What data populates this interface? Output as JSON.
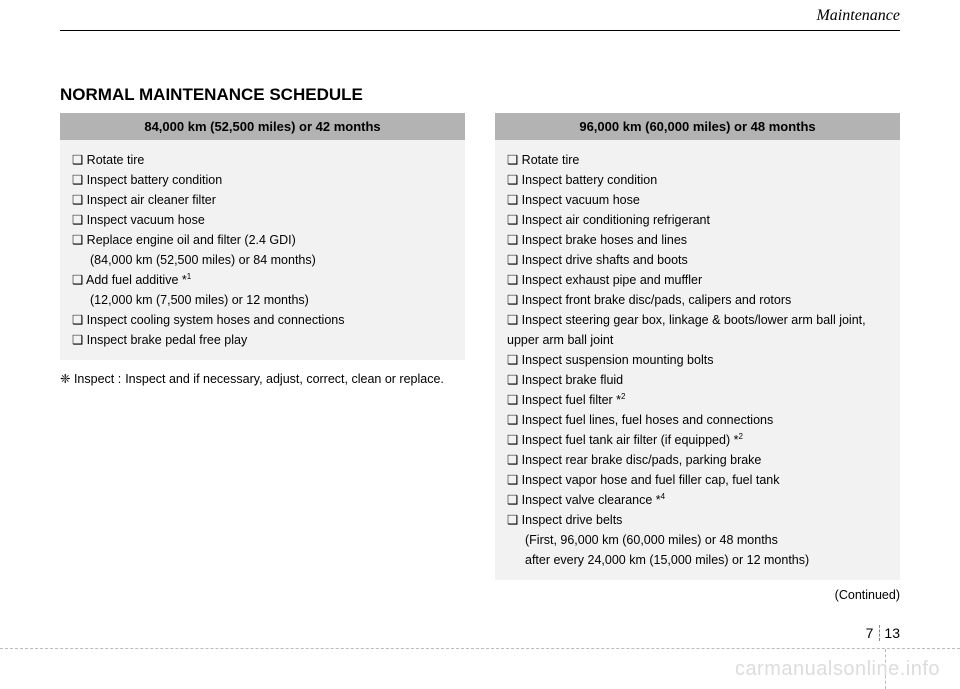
{
  "header": {
    "section": "Maintenance"
  },
  "title": "NORMAL MAINTENANCE SCHEDULE",
  "left": {
    "interval": "84,000 km (52,500 miles) or 42 months",
    "items": [
      {
        "text": "❑ Rotate tire"
      },
      {
        "text": "❑ Inspect battery condition"
      },
      {
        "text": "❑ Inspect air cleaner filter"
      },
      {
        "text": "❑ Inspect vacuum hose"
      },
      {
        "text": "❑ Replace engine oil and filter (2.4 GDI)"
      },
      {
        "text": "(84,000 km (52,500 miles) or 84 months)",
        "sub": true
      },
      {
        "text": "❑ Add fuel additive *",
        "sup": "1"
      },
      {
        "text": "(12,000 km (7,500 miles) or 12 months)",
        "sub": true
      },
      {
        "text": "❑ Inspect cooling system hoses and connections"
      },
      {
        "text": "❑ Inspect brake pedal free play"
      }
    ],
    "note_label": "❈ Inspect :",
    "note_text": "Inspect and if necessary, adjust, correct, clean or replace."
  },
  "right": {
    "interval": "96,000 km (60,000 miles) or 48 months",
    "items": [
      {
        "text": "❑ Rotate tire"
      },
      {
        "text": "❑ Inspect battery condition"
      },
      {
        "text": "❑ Inspect vacuum hose"
      },
      {
        "text": "❑ Inspect air conditioning refrigerant"
      },
      {
        "text": "❑ Inspect brake hoses and lines"
      },
      {
        "text": "❑ Inspect drive shafts and boots"
      },
      {
        "text": "❑ Inspect exhaust pipe and muffler"
      },
      {
        "text": "❑ Inspect front brake disc/pads, calipers and rotors"
      },
      {
        "text": "❑ Inspect steering gear box, linkage & boots/lower arm ball joint, upper arm ball joint"
      },
      {
        "text": "❑ Inspect suspension mounting bolts"
      },
      {
        "text": "❑ Inspect brake fluid"
      },
      {
        "text": "❑ Inspect fuel filter *",
        "sup": "2"
      },
      {
        "text": "❑ Inspect fuel lines, fuel hoses and connections"
      },
      {
        "text": "❑ Inspect fuel tank air filter (if equipped) *",
        "sup": "2"
      },
      {
        "text": "❑ Inspect rear brake disc/pads, parking brake"
      },
      {
        "text": "❑ Inspect vapor hose and fuel filler cap, fuel tank"
      },
      {
        "text": "❑ Inspect valve clearance *",
        "sup": "4"
      },
      {
        "text": "❑ Inspect drive belts"
      },
      {
        "text": "(First, 96,000 km (60,000 miles) or 48 months",
        "sub": true
      },
      {
        "text": "after every 24,000 km (15,000 miles) or 12 months)",
        "sub": true
      }
    ],
    "continued": "(Continued)"
  },
  "page": {
    "chapter": "7",
    "num": "13"
  },
  "watermark": "carmanualsonline.info"
}
